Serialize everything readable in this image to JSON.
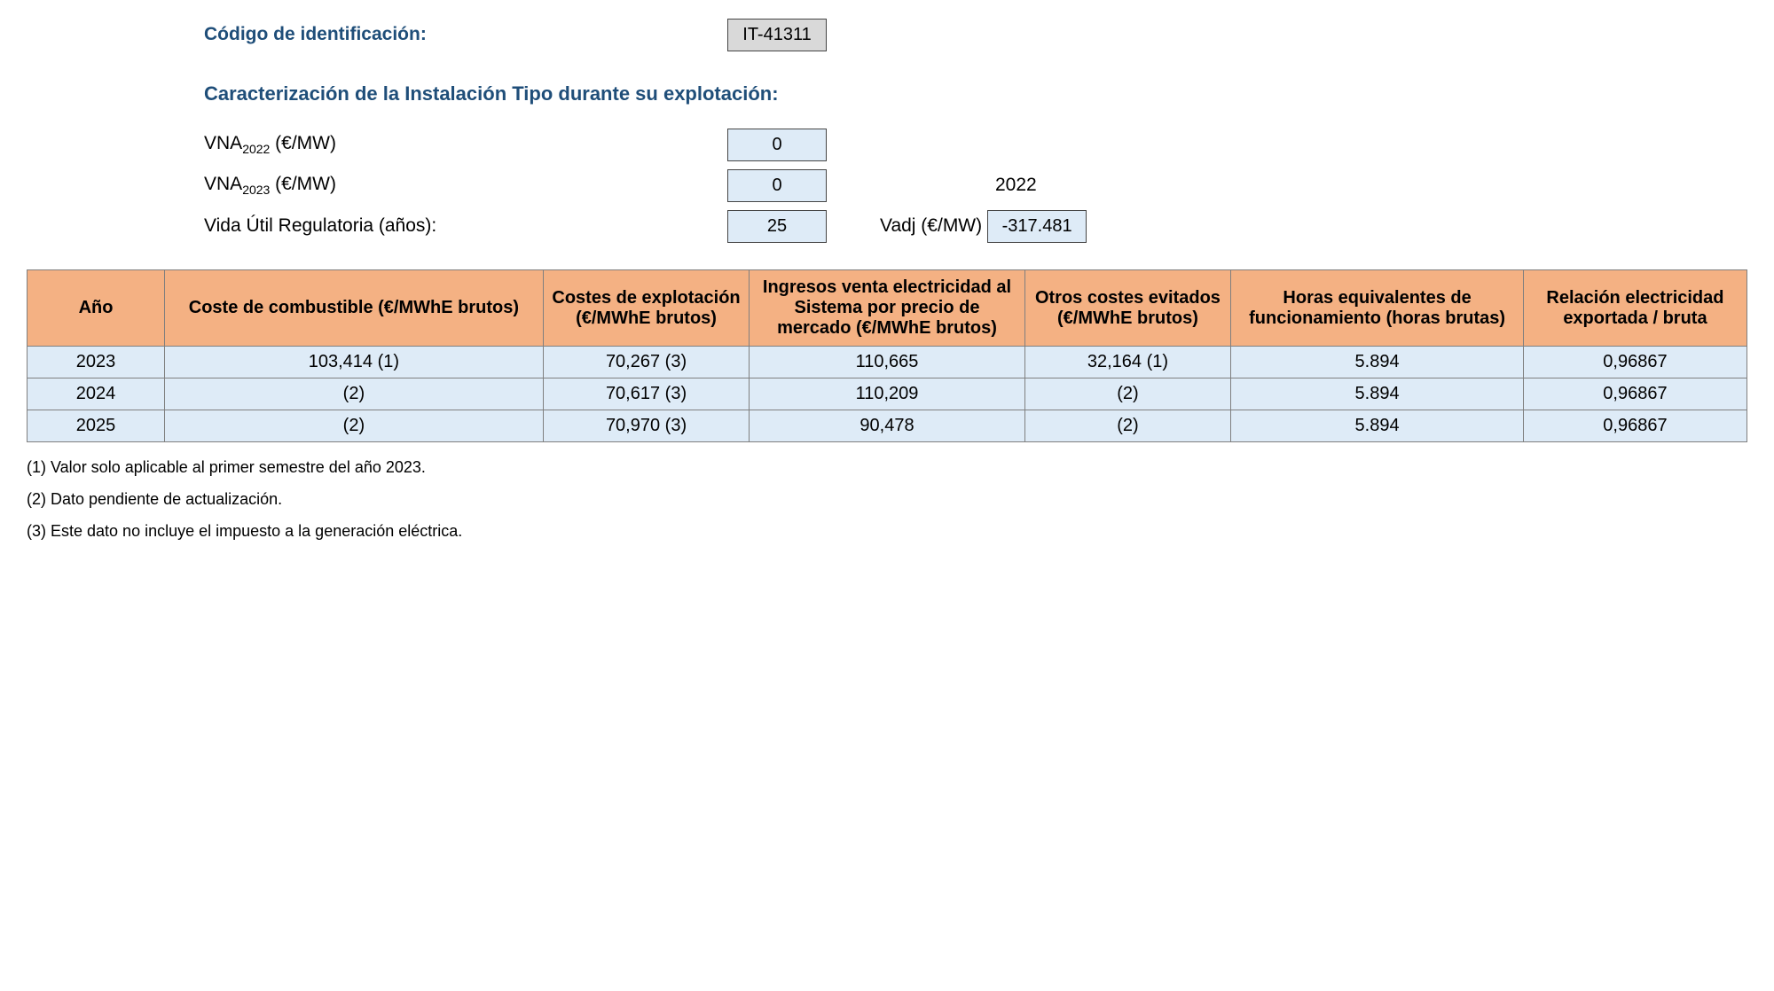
{
  "header": {
    "codigo_label": "Código de identificación:",
    "codigo_value": "IT-41311",
    "caract_title": "Caracterización de la Instalación Tipo durante su explotación:",
    "vna2022_label": "VNA",
    "vna2022_sub": "2022",
    "vna2022_unit": " (€/MW)",
    "vna2022_value": "0",
    "vna2023_label": "VNA",
    "vna2023_sub": "2023",
    "vna2023_unit": " (€/MW)",
    "vna2023_value": "0",
    "year_ref": "2022",
    "vida_label": "Vida Útil Regulatoria (años):",
    "vida_value": "25",
    "vadj_label": "Vadj (€/MW)",
    "vadj_value": "-317.481"
  },
  "table": {
    "columns": [
      "Año",
      "Coste de combustible (€/MWhE brutos)",
      "Costes de explotación (€/MWhE brutos)",
      "Ingresos venta electricidad al Sistema por precio de mercado (€/MWhE brutos)",
      "Otros costes evitados (€/MWhE brutos)",
      "Horas equivalentes de funcionamiento (horas brutas)",
      "Relación electricidad exportada / bruta"
    ],
    "col_widths_pct": [
      8,
      22,
      12,
      16,
      12,
      17,
      13
    ],
    "rows": [
      [
        "2023",
        "103,414 (1)",
        "70,267 (3)",
        "110,665",
        "32,164 (1)",
        "5.894",
        "0,96867"
      ],
      [
        "2024",
        "(2)",
        "70,617 (3)",
        "110,209",
        "(2)",
        "5.894",
        "0,96867"
      ],
      [
        "2025",
        "(2)",
        "70,970 (3)",
        "90,478",
        "(2)",
        "5.894",
        "0,96867"
      ]
    ]
  },
  "footnotes": [
    "(1) Valor solo aplicable al primer semestre del año 2023.",
    "(2) Dato pendiente de actualización.",
    "(3) Este dato no incluye el impuesto a la generación eléctrica."
  ],
  "colors": {
    "heading": "#1f4e79",
    "th_bg": "#f4b183",
    "td_bg": "#deebf7",
    "border": "#7f7f7f",
    "box_grey": "#d9d9d9"
  }
}
